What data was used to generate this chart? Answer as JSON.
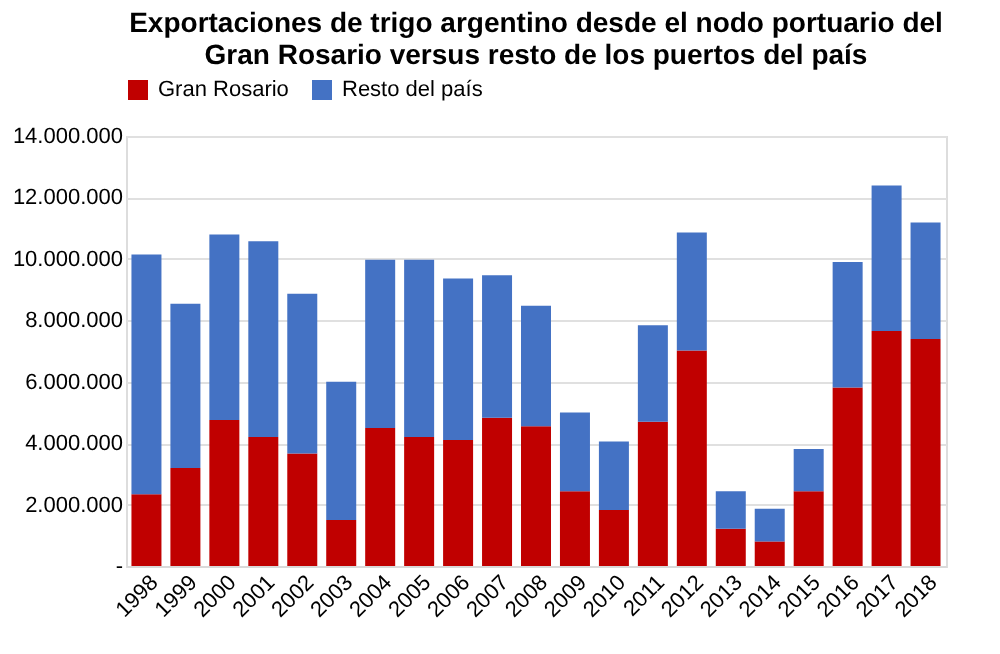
{
  "chart_data": {
    "type": "bar",
    "stacked": true,
    "title": "Exportaciones de trigo argentino desde el nodo portuario del\nGran Rosario versus resto de los puertos del país",
    "categories": [
      "1998",
      "1999",
      "2000",
      "2001",
      "2002",
      "2003",
      "2004",
      "2005",
      "2006",
      "2007",
      "2008",
      "2009",
      "2010",
      "2011",
      "2012",
      "2013",
      "2014",
      "2015",
      "2016",
      "2017",
      "2018"
    ],
    "series": [
      {
        "name": "Gran Rosario",
        "color": "#c00000",
        "values": [
          2340000,
          3190000,
          4750000,
          4200000,
          3660000,
          1500000,
          4490000,
          4200000,
          4100000,
          4830000,
          4550000,
          2430000,
          1820000,
          4700000,
          7020000,
          1210000,
          800000,
          2430000,
          5810000,
          7650000,
          7390000
        ]
      },
      {
        "name": "Resto del país",
        "color": "#4472c4",
        "values": [
          7800000,
          5350000,
          6040000,
          6370000,
          5200000,
          4500000,
          5480000,
          5770000,
          5260000,
          4640000,
          3920000,
          2570000,
          2230000,
          3140000,
          3840000,
          1220000,
          1060000,
          1380000,
          4090000,
          4740000,
          3790000
        ]
      }
    ],
    "ylim": [
      0,
      14000000
    ],
    "yticks": [
      {
        "value": 0,
        "label": "-"
      },
      {
        "value": 2000000,
        "label": "2.000.000"
      },
      {
        "value": 4000000,
        "label": "4.000.000"
      },
      {
        "value": 6000000,
        "label": "6.000.000"
      },
      {
        "value": 8000000,
        "label": "8.000.000"
      },
      {
        "value": 10000000,
        "label": "10.000.000"
      },
      {
        "value": 12000000,
        "label": "12.000.000"
      },
      {
        "value": 14000000,
        "label": "14.000.000"
      }
    ],
    "grid": "y",
    "legend": "top"
  }
}
